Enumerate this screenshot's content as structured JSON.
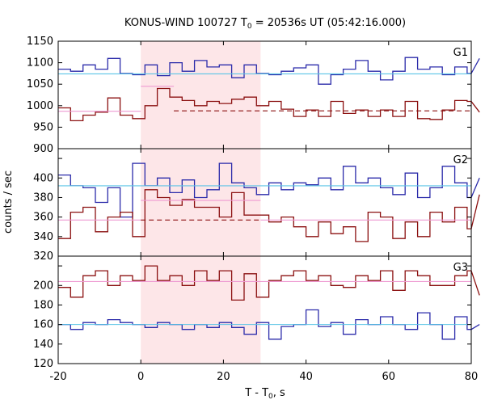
{
  "chart_data": {
    "type": "line",
    "title": {
      "main": "KONUS-WIND 100727 T",
      "sub": "0",
      "rest": " = 20536s UT (05:42:16.000)"
    },
    "xlabel": {
      "main": "T - T",
      "sub": "0",
      "rest": ", s"
    },
    "ylabel": "counts / sec",
    "xlim": [
      -20,
      80
    ],
    "xticks": [
      "-20",
      "0",
      "20",
      "40",
      "60",
      "80"
    ],
    "highlight_interval": [
      0,
      29
    ],
    "colors": {
      "highlight": "#fde6e8",
      "blue_series": "#2b2baa",
      "red_series": "#8b1010",
      "blue_fit": "#5bc4e6",
      "pink_fit": "#ee9ad2",
      "red_fit": "#8b1010"
    },
    "panels": [
      {
        "label": "G1",
        "ylim": [
          900,
          1150
        ],
        "yticks": [
          "900",
          "950",
          "1000",
          "1050",
          "1100",
          "1150"
        ],
        "bins": {
          "edges": [
            -20,
            -17,
            -14,
            -11,
            -8,
            -5,
            -2,
            1,
            4,
            7,
            10,
            13,
            16,
            19,
            22,
            25,
            28,
            31,
            34,
            37,
            40,
            43,
            46,
            49,
            52,
            55,
            58,
            61,
            64,
            67,
            70,
            73,
            76,
            79,
            82
          ],
          "blue": [
            1085,
            1080,
            1095,
            1085,
            1110,
            1075,
            1072,
            1095,
            1070,
            1100,
            1080,
            1105,
            1090,
            1095,
            1065,
            1095,
            1075,
            1072,
            1080,
            1088,
            1095,
            1050,
            1072,
            1085,
            1105,
            1080,
            1060,
            1080,
            1112,
            1085,
            1090,
            1072,
            1090,
            1075,
            1110
          ],
          "red": [
            995,
            965,
            978,
            985,
            1018,
            978,
            970,
            1000,
            1040,
            1020,
            1012,
            1000,
            1010,
            1005,
            1015,
            1020,
            1000,
            1010,
            992,
            975,
            990,
            975,
            1010,
            982,
            990,
            975,
            990,
            975,
            1010,
            970,
            968,
            990,
            1012,
            1010,
            985
          ]
        },
        "fits": [
          {
            "name": "blue_fit",
            "value": 1074,
            "from": -20,
            "to": 80,
            "dashed": false
          },
          {
            "name": "pink_fit",
            "value": 987,
            "from": -20,
            "to": 0,
            "dashed": false
          },
          {
            "name": "pink_fit_burst",
            "value": 1045,
            "from": 0,
            "to": 8,
            "dashed": false
          },
          {
            "name": "red_fit_post",
            "value": 988,
            "from": 8,
            "to": 80,
            "dashed": true
          }
        ]
      },
      {
        "label": "G2",
        "ylim": [
          320,
          430
        ],
        "yticks": [
          "320",
          "340",
          "360",
          "380",
          "400",
          "420"
        ],
        "bins": {
          "edges": [
            -20,
            -17,
            -14,
            -11,
            -8,
            -5,
            -2,
            1,
            4,
            7,
            10,
            13,
            16,
            19,
            22,
            25,
            28,
            31,
            34,
            37,
            40,
            43,
            46,
            49,
            52,
            55,
            58,
            61,
            64,
            67,
            70,
            73,
            76,
            79,
            82
          ],
          "blue": [
            403,
            392,
            390,
            375,
            390,
            360,
            415,
            392,
            400,
            385,
            398,
            380,
            388,
            415,
            395,
            390,
            383,
            395,
            388,
            395,
            393,
            400,
            388,
            412,
            395,
            400,
            390,
            383,
            405,
            380,
            390,
            412,
            395,
            380,
            400
          ],
          "red": [
            338,
            365,
            370,
            345,
            360,
            365,
            340,
            388,
            380,
            372,
            378,
            370,
            370,
            360,
            385,
            362,
            362,
            355,
            360,
            350,
            340,
            355,
            343,
            350,
            335,
            365,
            360,
            338,
            355,
            340,
            365,
            355,
            370,
            348,
            383
          ]
        },
        "fits": [
          {
            "name": "blue_fit",
            "value": 392,
            "from": -20,
            "to": 80,
            "dashed": false
          },
          {
            "name": "pink_fit",
            "value": 357,
            "from": -20,
            "to": 0,
            "dashed": false
          },
          {
            "name": "pink_fit_burst",
            "value": 377,
            "from": 0,
            "to": 29,
            "dashed": false
          },
          {
            "name": "red_fit_post",
            "value": 357,
            "from": 0,
            "to": 29,
            "dashed": true
          },
          {
            "name": "pink_fit_tail",
            "value": 357,
            "from": 29,
            "to": 80,
            "dashed": false
          }
        ]
      },
      {
        "label": "G3",
        "ylim": [
          120,
          230
        ],
        "yticks": [
          "120",
          "140",
          "160",
          "180",
          "200",
          "220"
        ],
        "bins": {
          "edges": [
            -20,
            -17,
            -14,
            -11,
            -8,
            -5,
            -2,
            1,
            4,
            7,
            10,
            13,
            16,
            19,
            22,
            25,
            28,
            31,
            34,
            37,
            40,
            43,
            46,
            49,
            52,
            55,
            58,
            61,
            64,
            67,
            70,
            73,
            76,
            79,
            82
          ],
          "blue": [
            160,
            155,
            162,
            160,
            165,
            162,
            160,
            157,
            162,
            160,
            155,
            160,
            157,
            162,
            157,
            150,
            162,
            145,
            158,
            160,
            175,
            158,
            162,
            150,
            165,
            160,
            168,
            160,
            155,
            172,
            160,
            145,
            168,
            155,
            160
          ],
          "red": [
            198,
            188,
            210,
            215,
            200,
            210,
            205,
            220,
            205,
            210,
            200,
            215,
            205,
            215,
            185,
            212,
            188,
            205,
            210,
            215,
            205,
            210,
            200,
            198,
            210,
            205,
            215,
            195,
            215,
            210,
            200,
            200,
            210,
            215,
            190
          ]
        },
        "fits": [
          {
            "name": "blue_fit",
            "value": 160,
            "from": -20,
            "to": 80,
            "dashed": false
          },
          {
            "name": "pink_fit",
            "value": 204,
            "from": -20,
            "to": 80,
            "dashed": false
          }
        ]
      }
    ]
  }
}
